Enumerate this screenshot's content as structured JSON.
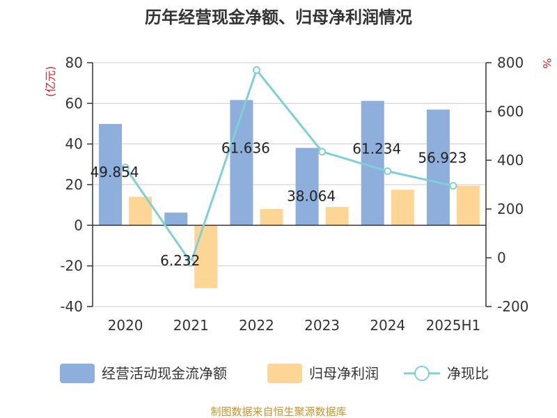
{
  "chart_data": {
    "type": "bar",
    "title": "历年经营现金净额、归母净利润情况",
    "categories": [
      "2020",
      "2021",
      "2022",
      "2023",
      "2024",
      "2025H1"
    ],
    "left_axis": {
      "unit": "(亿元)",
      "ylim": [
        -40,
        80
      ],
      "ticks": [
        80,
        60,
        40,
        20,
        0,
        -20,
        -40
      ]
    },
    "right_axis": {
      "unit": "%",
      "ylim": [
        -200,
        800
      ],
      "ticks": [
        800,
        600,
        400,
        200,
        0,
        -200
      ]
    },
    "series": [
      {
        "name": "经营活动现金流净额",
        "kind": "bar",
        "axis": "left",
        "color": "#8eaedc",
        "values": [
          49.854,
          6.232,
          61.636,
          38.064,
          61.234,
          56.923
        ],
        "labels": [
          "49.854",
          "6.232",
          "61.636",
          "38.064",
          "61.234",
          "56.923"
        ]
      },
      {
        "name": "归母净利润",
        "kind": "bar",
        "axis": "left",
        "color": "#fdd696",
        "values": [
          14.0,
          -31.0,
          8.0,
          9.0,
          17.5,
          19.5
        ]
      },
      {
        "name": "净现比",
        "kind": "line",
        "axis": "right",
        "color": "#7fd0d6",
        "values": [
          370,
          -20,
          770,
          435,
          355,
          295
        ]
      }
    ],
    "grid": true,
    "legend_position": "bottom"
  },
  "source": "制图数据来自恒生聚源数据库"
}
